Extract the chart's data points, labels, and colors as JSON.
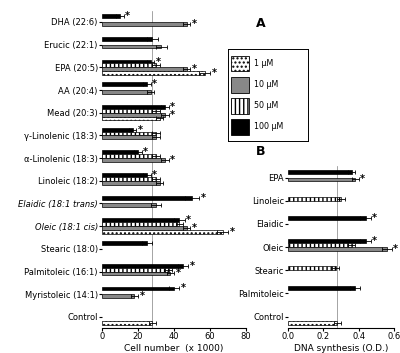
{
  "panel_A": {
    "categories": [
      "DHA (22:6)",
      "Erucic (22:1)",
      "EPA (20:5)",
      "AA (20:4)",
      "Mead (20:3)",
      "γ-Linolenic (18:3)",
      "α-Linolenic (18:3)",
      "Linoleic (18:2)",
      "Elaidic (18:1 trans)",
      "Oleic (18:1 cis)",
      "Stearic (18:0)",
      "Palmitoleic (16:1)",
      "Myristoleic (14:1)",
      "Control"
    ],
    "bars": [
      [
        10,
        null,
        47,
        null
      ],
      [
        28,
        null,
        33,
        null
      ],
      [
        27,
        30,
        47,
        57
      ],
      [
        25,
        null,
        27,
        null
      ],
      [
        35,
        30,
        35,
        32
      ],
      [
        17,
        30,
        30,
        null
      ],
      [
        20,
        30,
        35,
        null
      ],
      [
        25,
        30,
        32,
        null
      ],
      [
        50,
        null,
        30,
        null
      ],
      [
        43,
        43,
        47,
        67
      ],
      [
        25,
        null,
        null,
        null
      ],
      [
        45,
        37,
        38,
        null
      ],
      [
        40,
        null,
        18,
        null
      ],
      [
        null,
        null,
        null,
        28
      ]
    ],
    "errors": [
      [
        2,
        null,
        2,
        null
      ],
      [
        3,
        null,
        3,
        null
      ],
      [
        2,
        2,
        2,
        3
      ],
      [
        2,
        null,
        2,
        null
      ],
      [
        2,
        2,
        2,
        2
      ],
      [
        2,
        2,
        2,
        null
      ],
      [
        2,
        2,
        2,
        null
      ],
      [
        2,
        2,
        2,
        null
      ],
      [
        4,
        null,
        3,
        null
      ],
      [
        3,
        2,
        2,
        3
      ],
      [
        3,
        null,
        null,
        null
      ],
      [
        3,
        2,
        2,
        null
      ],
      [
        3,
        null,
        2,
        null
      ],
      [
        null,
        null,
        null,
        2
      ]
    ],
    "sig": [
      [
        true,
        false,
        true,
        false
      ],
      [
        false,
        false,
        false,
        false
      ],
      [
        true,
        false,
        true,
        true
      ],
      [
        true,
        false,
        false,
        false
      ],
      [
        true,
        false,
        true,
        false
      ],
      [
        true,
        false,
        false,
        false
      ],
      [
        true,
        false,
        true,
        false
      ],
      [
        true,
        false,
        false,
        false
      ],
      [
        true,
        false,
        false,
        false
      ],
      [
        true,
        false,
        true,
        true
      ],
      [
        false,
        false,
        false,
        false
      ],
      [
        true,
        false,
        true,
        false
      ],
      [
        true,
        false,
        true,
        false
      ],
      [
        false,
        false,
        false,
        false
      ]
    ],
    "xlabel": "Cell number  (x 1000)",
    "xlim": [
      0,
      80
    ],
    "xticks": [
      0,
      20,
      40,
      60,
      80
    ],
    "refline": 28
  },
  "panel_B": {
    "categories": [
      "EPA",
      "Linoleic",
      "Elaidic",
      "Oleic",
      "Stearic",
      "Palmitoleic",
      "Control"
    ],
    "bars": [
      [
        0.36,
        null,
        0.38,
        null
      ],
      [
        null,
        0.3,
        null,
        null
      ],
      [
        0.44,
        null,
        null,
        null
      ],
      [
        0.44,
        0.36,
        0.56,
        null
      ],
      [
        null,
        0.27,
        null,
        null
      ],
      [
        0.38,
        null,
        null,
        null
      ],
      [
        null,
        null,
        null,
        0.28
      ]
    ],
    "errors": [
      [
        0.02,
        null,
        0.02,
        null
      ],
      [
        null,
        0.02,
        null,
        null
      ],
      [
        0.03,
        null,
        null,
        null
      ],
      [
        0.03,
        0.02,
        0.03,
        null
      ],
      [
        null,
        0.02,
        null,
        null
      ],
      [
        0.03,
        null,
        null,
        null
      ],
      [
        null,
        null,
        null,
        0.02
      ]
    ],
    "sig": [
      [
        false,
        false,
        true,
        false
      ],
      [
        false,
        false,
        false,
        false
      ],
      [
        true,
        false,
        false,
        false
      ],
      [
        true,
        false,
        true,
        false
      ],
      [
        false,
        false,
        false,
        false
      ],
      [
        false,
        false,
        false,
        false
      ],
      [
        false,
        false,
        false,
        false
      ]
    ],
    "xlabel": "DNA synthesis (O.D.)",
    "xlim": [
      0.0,
      0.6
    ],
    "xticks": [
      0.0,
      0.2,
      0.4,
      0.6
    ],
    "refline": 0.28
  },
  "bar_configs": [
    {
      "key": 0,
      "label": "100 μM",
      "facecolor": "black",
      "hatch": "",
      "edgecolor": "black"
    },
    {
      "key": 1,
      "label": "50 μM",
      "facecolor": "white",
      "hatch": "||||",
      "edgecolor": "black"
    },
    {
      "key": 2,
      "label": "10 μM",
      "facecolor": "#888888",
      "hatch": "",
      "edgecolor": "black"
    },
    {
      "key": 3,
      "label": "1 μM",
      "facecolor": "white",
      "hatch": "....",
      "edgecolor": "black"
    }
  ],
  "font_size": 6.0
}
